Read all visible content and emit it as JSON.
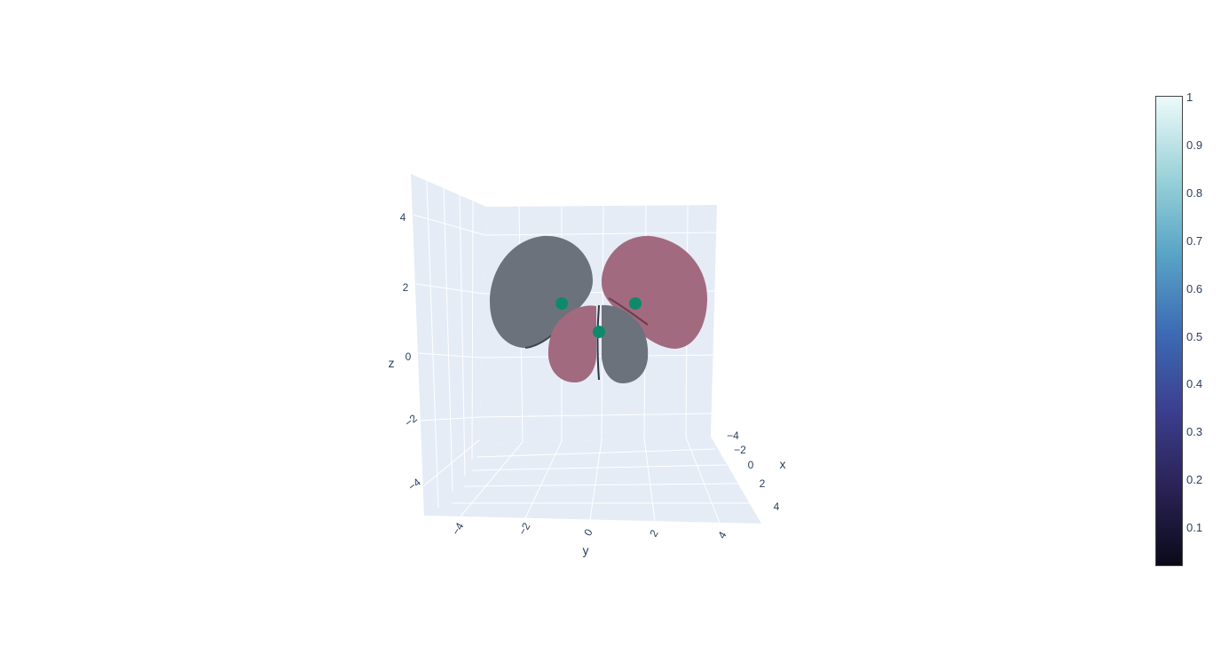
{
  "chart_data": {
    "type": "isosurface-3d",
    "title": "",
    "axes": {
      "x": {
        "title": "x",
        "ticks": [
          "−4",
          "−2",
          "0",
          "2",
          "4"
        ]
      },
      "y": {
        "title": "y",
        "ticks": [
          "−4",
          "−2",
          "0",
          "2",
          "4"
        ]
      },
      "z": {
        "title": "z",
        "ticks": [
          "−4",
          "−2",
          "0",
          "2",
          "4"
        ]
      }
    },
    "lobes": [
      {
        "name": "lobe-upper-left",
        "color": "#6c727c"
      },
      {
        "name": "lobe-upper-right",
        "color": "#a26a7f"
      },
      {
        "name": "lobe-lower-left",
        "color": "#a26a7f"
      },
      {
        "name": "lobe-lower-right",
        "color": "#6c727c"
      }
    ],
    "markers": {
      "color": "#0e8a6a",
      "count": 3
    },
    "colorbar": {
      "ticks": [
        "1",
        "0.9",
        "0.8",
        "0.7",
        "0.6",
        "0.5",
        "0.4",
        "0.3",
        "0.2",
        "0.1"
      ],
      "range": [
        0.02,
        1
      ],
      "colors_top_to_bottom": [
        "#edfafa",
        "#9bd3d9",
        "#5aa6c7",
        "#3d6cb5",
        "#3b3f8f",
        "#2b2357",
        "#0a0a18"
      ]
    },
    "background_color": "#e5ecf6",
    "grid_color": "#ffffff"
  }
}
